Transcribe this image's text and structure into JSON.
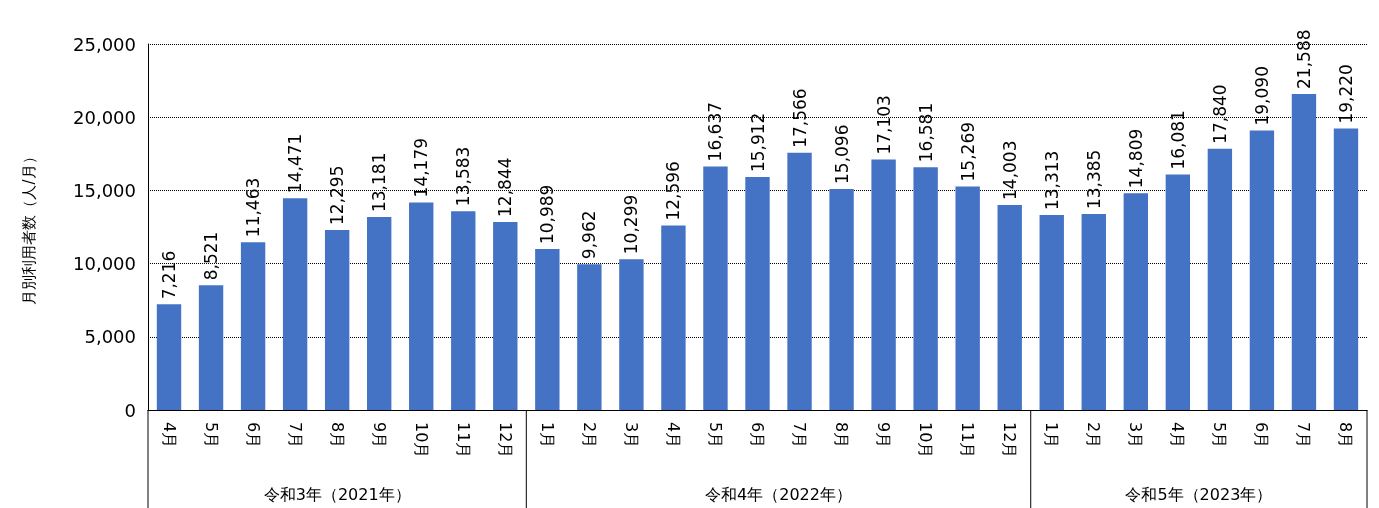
{
  "chart_data": {
    "type": "bar",
    "ylabel": "月別利用者数（人/月）",
    "categories": [
      "4月",
      "5月",
      "6月",
      "7月",
      "8月",
      "9月",
      "10月",
      "11月",
      "12月",
      "1月",
      "2月",
      "3月",
      "4月",
      "5月",
      "6月",
      "7月",
      "8月",
      "9月",
      "10月",
      "11月",
      "12月",
      "1月",
      "2月",
      "3月",
      "4月",
      "5月",
      "6月",
      "7月",
      "8月"
    ],
    "values": [
      7216,
      8521,
      11463,
      14471,
      12295,
      13181,
      14179,
      13583,
      12844,
      10989,
      9962,
      10299,
      12596,
      16637,
      15912,
      17566,
      15096,
      17103,
      16581,
      15269,
      14003,
      13313,
      13385,
      14809,
      16081,
      17840,
      19090,
      21588,
      19220
    ],
    "value_labels": [
      "7,216",
      "8,521",
      "11,463",
      "14,471",
      "12,295",
      "13,181",
      "14,179",
      "13,583",
      "12,844",
      "10,989",
      "9,962",
      "10,299",
      "12,596",
      "16,637",
      "15,912",
      "17,566",
      "15,096",
      "17,103",
      "16,581",
      "15,269",
      "14,003",
      "13,313",
      "13,385",
      "14,809",
      "16,081",
      "17,840",
      "19,090",
      "21,588",
      "19,220"
    ],
    "color": "#4472c4",
    "ylim": [
      0,
      25000
    ],
    "yticks": [
      0,
      {
        "value": 5000,
        "label": "5,000"
      },
      {
        "value": 10000,
        "label": "10,000"
      },
      {
        "value": 15000,
        "label": "15,000"
      },
      {
        "value": 20000,
        "label": "20,000"
      },
      {
        "value": 25000,
        "label": "25,000"
      }
    ],
    "grid": "y",
    "annotations": [
      "令和3年（2021年）",
      "令和4年（2022年）",
      "令和5年（2023年）"
    ]
  }
}
